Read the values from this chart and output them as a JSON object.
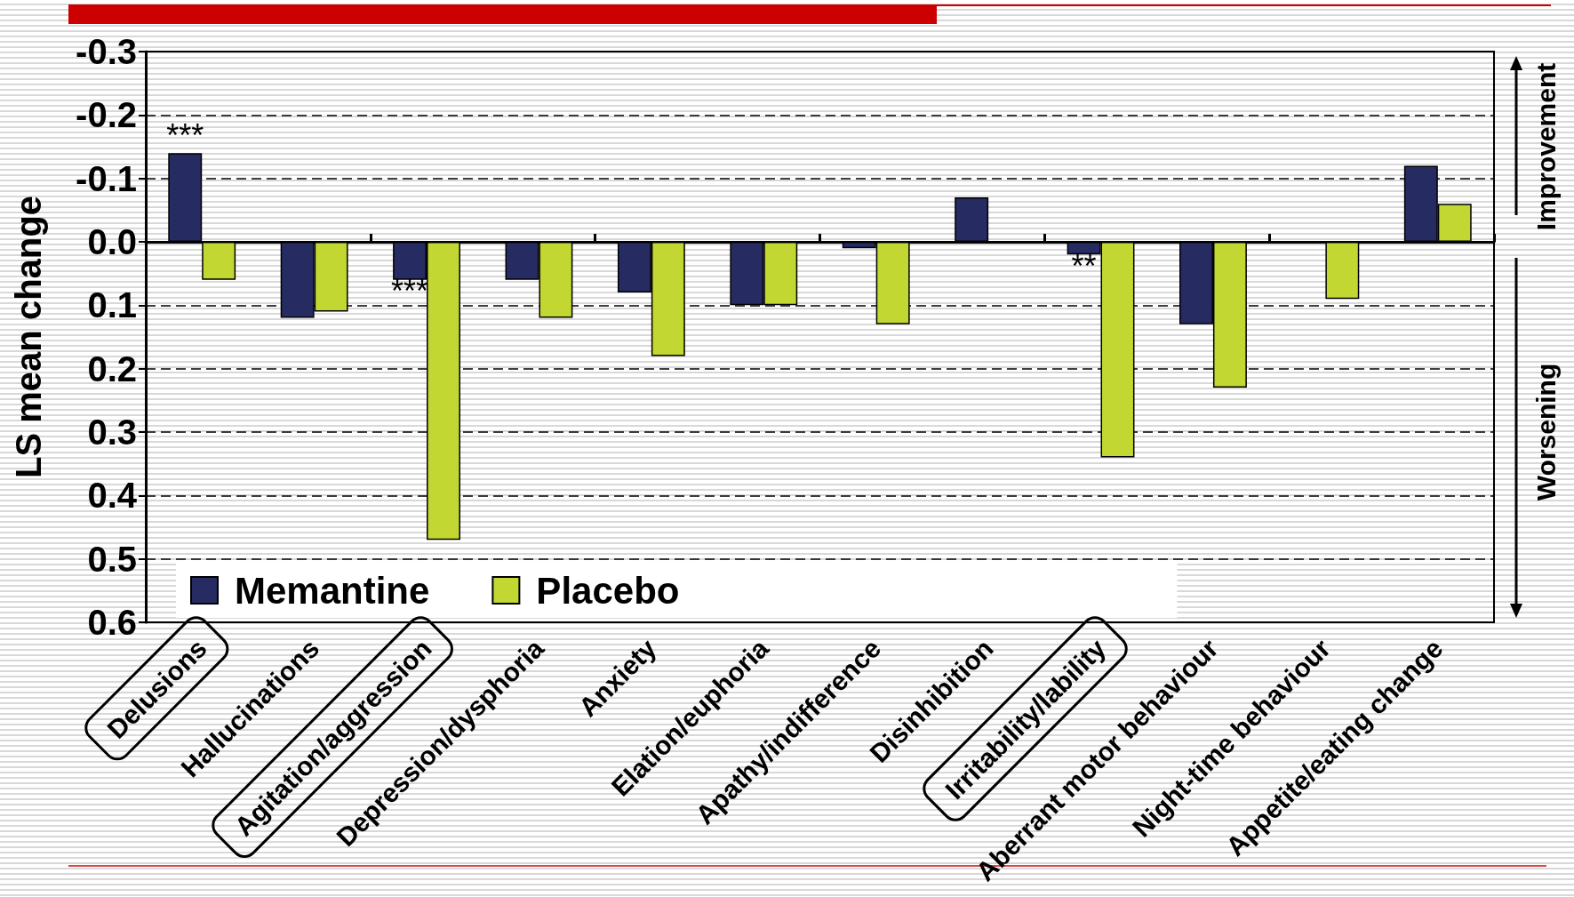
{
  "chart_data": {
    "type": "bar",
    "ylabel": "LS mean change",
    "categories": [
      "Delusions",
      "Hallucinations",
      "Agitation/aggression",
      "Depression/dysphoria",
      "Anxiety",
      "Elation/euphoria",
      "Apathy/indifference",
      "Disinhibition",
      "Irritability/lability",
      "Aberrant motor behaviour",
      "Night-time behaviour",
      "Appetite/eating change"
    ],
    "series": [
      {
        "name": "Memantine",
        "color": "#262b62",
        "values": [
          -0.14,
          0.12,
          0.06,
          0.06,
          0.08,
          0.1,
          0.01,
          -0.07,
          0.02,
          0.13,
          null,
          -0.12
        ]
      },
      {
        "name": "Placebo",
        "color": "#c2d732",
        "values": [
          0.06,
          0.11,
          0.47,
          0.12,
          0.18,
          0.1,
          0.13,
          null,
          0.34,
          0.23,
          0.09,
          -0.06
        ]
      }
    ],
    "ylim": [
      0.6,
      -0.3
    ],
    "yticks": [
      -0.3,
      -0.2,
      -0.1,
      {
        "value": 0,
        "label": "0.0"
      },
      0.1,
      0.2,
      0.3,
      0.4,
      0.5,
      0.6
    ],
    "grid": "y",
    "legend": "bottom left",
    "annotations": [
      {
        "text": "***",
        "x": "Delusions",
        "y": -0.14
      },
      {
        "text": "***",
        "x": "Agitation/aggression",
        "y": 0.06
      },
      {
        "text": "**",
        "x": "Irritability/lability",
        "y": 0.02
      },
      "Improvement",
      "Worsening"
    ]
  }
}
